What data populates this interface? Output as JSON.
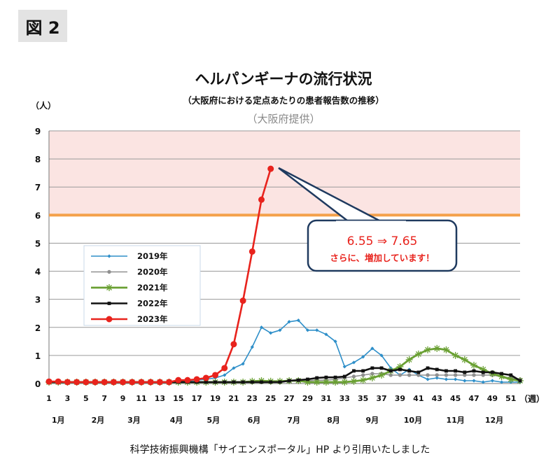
{
  "figure_label": "図 2",
  "caption": "科学技術振興機構「サイエンスポータル」HP より引用いたしました",
  "chart_data": {
    "type": "line",
    "title": "ヘルパンギーナの流行状況",
    "subtitle": "（大阪府における定点あたりの患者報告数の推移）",
    "source": "（大阪府提供）",
    "ylabel": "（人）",
    "xlabel": "（週）",
    "ylim": [
      0,
      9
    ],
    "yticks": [
      0,
      1,
      2,
      3,
      4,
      5,
      6,
      7,
      8,
      9
    ],
    "xlim": [
      1,
      52
    ],
    "xticks": [
      1,
      3,
      5,
      7,
      9,
      11,
      13,
      15,
      17,
      19,
      21,
      23,
      25,
      27,
      29,
      31,
      33,
      35,
      37,
      39,
      41,
      43,
      45,
      47,
      49,
      51
    ],
    "months": [
      {
        "label": "1月",
        "week": 2
      },
      {
        "label": "2月",
        "week": 6.3
      },
      {
        "label": "3月",
        "week": 10.2
      },
      {
        "label": "4月",
        "week": 14.8
      },
      {
        "label": "5月",
        "week": 18.8
      },
      {
        "label": "6月",
        "week": 23.2
      },
      {
        "label": "7月",
        "week": 27.5
      },
      {
        "label": "8月",
        "week": 31.8
      },
      {
        "label": "9月",
        "week": 36
      },
      {
        "label": "10月",
        "week": 40.4
      },
      {
        "label": "11月",
        "week": 45
      },
      {
        "label": "12月",
        "week": 49.2
      }
    ],
    "alert_threshold": 6,
    "alert_zone": [
      6,
      9
    ],
    "callout": {
      "line1": "6.55 ⇒ 7.65",
      "line2": "さらに、増加しています！"
    },
    "legend_position": "left-middle",
    "grid": true,
    "colors": {
      "alert_line": "#f4a04a",
      "alert_zone": "#fbe4e2"
    },
    "series": [
      {
        "name": "2019年",
        "color": "#2e8fc9",
        "marker": "diamond",
        "x": [
          1,
          2,
          3,
          4,
          5,
          6,
          7,
          8,
          9,
          10,
          11,
          12,
          13,
          14,
          15,
          16,
          17,
          18,
          19,
          20,
          21,
          22,
          23,
          24,
          25,
          26,
          27,
          28,
          29,
          30,
          31,
          32,
          33,
          34,
          35,
          36,
          37,
          38,
          39,
          40,
          41,
          42,
          43,
          44,
          45,
          46,
          47,
          48,
          49,
          50,
          51,
          52
        ],
        "y": [
          0.05,
          0.05,
          0.05,
          0.05,
          0.05,
          0.05,
          0.05,
          0.05,
          0.05,
          0.05,
          0.05,
          0.05,
          0.05,
          0.05,
          0.05,
          0.1,
          0.12,
          0.15,
          0.2,
          0.3,
          0.55,
          0.7,
          1.3,
          2.0,
          1.8,
          1.9,
          2.2,
          2.25,
          1.9,
          1.9,
          1.75,
          1.5,
          0.6,
          0.75,
          0.95,
          1.25,
          1.0,
          0.55,
          0.3,
          0.5,
          0.3,
          0.15,
          0.2,
          0.15,
          0.15,
          0.1,
          0.1,
          0.05,
          0.1,
          0.05,
          0.05,
          0.05
        ]
      },
      {
        "name": "2020年",
        "color": "#909090",
        "marker": "circle",
        "x": [
          1,
          2,
          3,
          4,
          5,
          6,
          7,
          8,
          9,
          10,
          11,
          12,
          13,
          14,
          15,
          16,
          17,
          18,
          19,
          20,
          21,
          22,
          23,
          24,
          25,
          26,
          27,
          28,
          29,
          30,
          31,
          32,
          33,
          34,
          35,
          36,
          37,
          38,
          39,
          40,
          41,
          42,
          43,
          44,
          45,
          46,
          47,
          48,
          49,
          50,
          51,
          52
        ],
        "y": [
          0.05,
          0.05,
          0.05,
          0.05,
          0.05,
          0.05,
          0.05,
          0.05,
          0.05,
          0.05,
          0.05,
          0.05,
          0.05,
          0.05,
          0.05,
          0.05,
          0.05,
          0.05,
          0.05,
          0.05,
          0.05,
          0.05,
          0.05,
          0.05,
          0.05,
          0.05,
          0.08,
          0.1,
          0.1,
          0.12,
          0.12,
          0.15,
          0.2,
          0.25,
          0.3,
          0.35,
          0.35,
          0.3,
          0.3,
          0.3,
          0.3,
          0.3,
          0.3,
          0.3,
          0.3,
          0.3,
          0.3,
          0.3,
          0.3,
          0.25,
          0.2,
          0.15
        ]
      },
      {
        "name": "2021年",
        "color": "#6aa033",
        "marker": "asterisk",
        "x": [
          1,
          2,
          3,
          4,
          5,
          6,
          7,
          8,
          9,
          10,
          11,
          12,
          13,
          14,
          15,
          16,
          17,
          18,
          19,
          20,
          21,
          22,
          23,
          24,
          25,
          26,
          27,
          28,
          29,
          30,
          31,
          32,
          33,
          34,
          35,
          36,
          37,
          38,
          39,
          40,
          41,
          42,
          43,
          44,
          45,
          46,
          47,
          48,
          49,
          50,
          51,
          52
        ],
        "y": [
          0.05,
          0.05,
          0.05,
          0.05,
          0.05,
          0.05,
          0.05,
          0.05,
          0.05,
          0.05,
          0.05,
          0.05,
          0.05,
          0.05,
          0.05,
          0.05,
          0.05,
          0.05,
          0.05,
          0.05,
          0.05,
          0.05,
          0.08,
          0.1,
          0.08,
          0.08,
          0.1,
          0.1,
          0.05,
          0.05,
          0.05,
          0.05,
          0.05,
          0.08,
          0.12,
          0.2,
          0.3,
          0.45,
          0.6,
          0.85,
          1.05,
          1.2,
          1.25,
          1.2,
          1.0,
          0.85,
          0.65,
          0.5,
          0.35,
          0.25,
          0.15,
          0.1
        ]
      },
      {
        "name": "2022年",
        "color": "#111111",
        "marker": "square",
        "x": [
          1,
          2,
          3,
          4,
          5,
          6,
          7,
          8,
          9,
          10,
          11,
          12,
          13,
          14,
          15,
          16,
          17,
          18,
          19,
          20,
          21,
          22,
          23,
          24,
          25,
          26,
          27,
          28,
          29,
          30,
          31,
          32,
          33,
          34,
          35,
          36,
          37,
          38,
          39,
          40,
          41,
          42,
          43,
          44,
          45,
          46,
          47,
          48,
          49,
          50,
          51,
          52
        ],
        "y": [
          0.05,
          0.05,
          0.05,
          0.05,
          0.05,
          0.05,
          0.05,
          0.05,
          0.05,
          0.05,
          0.05,
          0.05,
          0.05,
          0.05,
          0.05,
          0.05,
          0.05,
          0.05,
          0.05,
          0.05,
          0.05,
          0.05,
          0.05,
          0.05,
          0.05,
          0.05,
          0.1,
          0.12,
          0.15,
          0.2,
          0.22,
          0.22,
          0.25,
          0.45,
          0.45,
          0.55,
          0.55,
          0.45,
          0.5,
          0.45,
          0.4,
          0.55,
          0.5,
          0.45,
          0.45,
          0.4,
          0.45,
          0.4,
          0.4,
          0.35,
          0.3,
          0.1
        ]
      },
      {
        "name": "2023年",
        "color": "#e8231d",
        "marker": "circle",
        "x": [
          1,
          2,
          3,
          4,
          5,
          6,
          7,
          8,
          9,
          10,
          11,
          12,
          13,
          14,
          15,
          16,
          17,
          18,
          19,
          20,
          21,
          22,
          23,
          24,
          25
        ],
        "y": [
          0.07,
          0.07,
          0.05,
          0.05,
          0.05,
          0.05,
          0.05,
          0.05,
          0.05,
          0.05,
          0.05,
          0.05,
          0.05,
          0.05,
          0.12,
          0.12,
          0.15,
          0.2,
          0.3,
          0.55,
          1.4,
          2.95,
          4.7,
          6.55,
          7.65
        ]
      }
    ]
  }
}
